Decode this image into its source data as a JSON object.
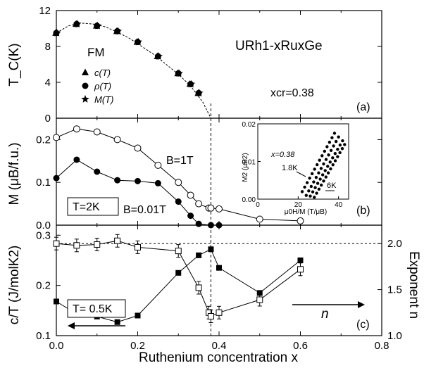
{
  "chart_data": [
    {
      "panel": "(a)",
      "type": "scatter",
      "ylabel": "T_C(K)",
      "xlim": [
        0,
        0.8
      ],
      "ylim": [
        0,
        12
      ],
      "y_ticks": [
        "0",
        "4",
        "8",
        "12"
      ],
      "labels": {
        "compound": "URh1-xRuxGe",
        "phase": "FM",
        "critical": "xcr=0.38"
      },
      "legend": [
        "c(T)",
        "ρ(T)",
        "M(T)"
      ],
      "series": [
        {
          "name": "c(T)",
          "marker": "triangle",
          "x": [
            0.0,
            0.05,
            0.1,
            0.15,
            0.2,
            0.25,
            0.3,
            0.33,
            0.35
          ],
          "y": [
            9.5,
            10.5,
            10.3,
            9.7,
            8.5,
            6.9,
            5.0,
            3.8,
            2.8
          ]
        },
        {
          "name": "ρ(T)",
          "marker": "circle",
          "x": [
            0.0,
            0.05,
            0.1,
            0.15,
            0.2,
            0.25,
            0.3,
            0.33,
            0.35
          ],
          "y": [
            9.5,
            10.5,
            10.3,
            9.7,
            8.5,
            6.9,
            5.0,
            3.8,
            2.8
          ]
        },
        {
          "name": "M(T)",
          "marker": "star",
          "x": [
            0.0,
            0.05,
            0.1,
            0.15,
            0.2,
            0.25,
            0.3,
            0.33,
            0.35
          ],
          "y": [
            9.5,
            10.5,
            10.3,
            9.7,
            8.5,
            6.9,
            5.0,
            3.8,
            2.8
          ]
        }
      ],
      "fit_curve": {
        "x": [
          0.0,
          0.03,
          0.06,
          0.09,
          0.12,
          0.15,
          0.18,
          0.21,
          0.24,
          0.27,
          0.3,
          0.33,
          0.36,
          0.38
        ],
        "y": [
          9.5,
          10.3,
          10.6,
          10.5,
          10.2,
          9.6,
          8.9,
          8.0,
          7.1,
          6.0,
          4.9,
          3.6,
          1.8,
          0.0
        ]
      },
      "vline_x": 0.38
    },
    {
      "panel": "(b)",
      "type": "line",
      "ylabel": "M (μB/f.u.)",
      "xlim": [
        0,
        0.8
      ],
      "ylim": [
        0,
        0.25
      ],
      "y_ticks": [
        "0.0",
        "0.1",
        "0.2"
      ],
      "labels": {
        "temperature": "T=2K"
      },
      "series": [
        {
          "name": "B=1T",
          "marker": "open-circle",
          "x": [
            0.0,
            0.05,
            0.1,
            0.15,
            0.2,
            0.25,
            0.3,
            0.33,
            0.35,
            0.375,
            0.38,
            0.4,
            0.5,
            0.6
          ],
          "y": [
            0.205,
            0.225,
            0.218,
            0.2,
            0.18,
            0.14,
            0.1,
            0.07,
            0.05,
            0.04,
            0.04,
            0.038,
            0.014,
            0.01
          ]
        },
        {
          "name": "B=0.01T",
          "marker": "filled-circle",
          "x": [
            0.0,
            0.05,
            0.1,
            0.15,
            0.2,
            0.25,
            0.3,
            0.33,
            0.35,
            0.38,
            0.4
          ],
          "y": [
            0.11,
            0.153,
            0.125,
            0.105,
            0.103,
            0.098,
            0.055,
            0.022,
            0.003,
            0.0,
            0.0
          ]
        }
      ],
      "inset": {
        "type": "scatter",
        "label": "x=0.38",
        "xlabel": "μ0H/M (T/μB)",
        "ylabel": "M2 (μB2)",
        "xlim": [
          0,
          45
        ],
        "ylim": [
          0,
          0.02
        ],
        "x_ticks": [
          "0",
          "20",
          "40"
        ],
        "y_ticks": [
          "0.00",
          "0.01",
          "0.02"
        ],
        "annotations": [
          "1.8K",
          "6K"
        ],
        "isotherms": [
          {
            "x": [
              22,
              26,
              30,
              34,
              38
            ],
            "y": [
              0.002,
              0.006,
              0.01,
              0.014,
              0.0175
            ]
          },
          {
            "x": [
              24,
              28,
              32,
              36,
              40
            ],
            "y": [
              0.001,
              0.005,
              0.009,
              0.013,
              0.0165
            ]
          },
          {
            "x": [
              26,
              30,
              34,
              38,
              42
            ],
            "y": [
              0.0008,
              0.004,
              0.008,
              0.012,
              0.0155
            ]
          },
          {
            "x": [
              28,
              32,
              36,
              40,
              43
            ],
            "y": [
              0.0005,
              0.003,
              0.007,
              0.011,
              0.0145
            ]
          }
        ]
      },
      "vline_x": 0.38
    },
    {
      "panel": "(c)",
      "type": "line",
      "xlabel": "Ruthenium concentration x",
      "ylabel": "c/T (J/molK2)",
      "y2label": "Exponent n",
      "xlim": [
        0,
        0.8
      ],
      "x_ticks": [
        "0.0",
        "0.2",
        "0.4",
        "0.6",
        "0.8"
      ],
      "ylim": [
        0.1,
        0.32
      ],
      "y_ticks": [
        "0.1",
        "0.2",
        "0.3"
      ],
      "y2lim": [
        1.0,
        2.2
      ],
      "y2_ticks": [
        "1.0",
        "1.5",
        "2.0"
      ],
      "labels": {
        "temperature": "T= 0.5K",
        "exponent": "n"
      },
      "hline_y2": 2.0,
      "series": [
        {
          "name": "c/T",
          "axis": "left",
          "marker": "filled-square",
          "x": [
            0.0,
            0.05,
            0.1,
            0.15,
            0.2,
            0.3,
            0.35,
            0.38,
            0.4,
            0.5,
            0.6
          ],
          "y": [
            0.168,
            0.143,
            0.138,
            0.127,
            0.14,
            0.225,
            0.26,
            0.272,
            0.235,
            0.185,
            0.25
          ]
        },
        {
          "name": "n",
          "axis": "right",
          "marker": "open-square",
          "x": [
            0.0,
            0.05,
            0.1,
            0.15,
            0.2,
            0.3,
            0.35,
            0.375,
            0.38,
            0.4,
            0.5,
            0.6
          ],
          "y": [
            2.0,
            1.98,
            1.99,
            2.03,
            1.96,
            1.92,
            1.52,
            1.25,
            1.21,
            1.25,
            1.39,
            1.72
          ]
        }
      ],
      "vline_x": 0.38
    }
  ]
}
